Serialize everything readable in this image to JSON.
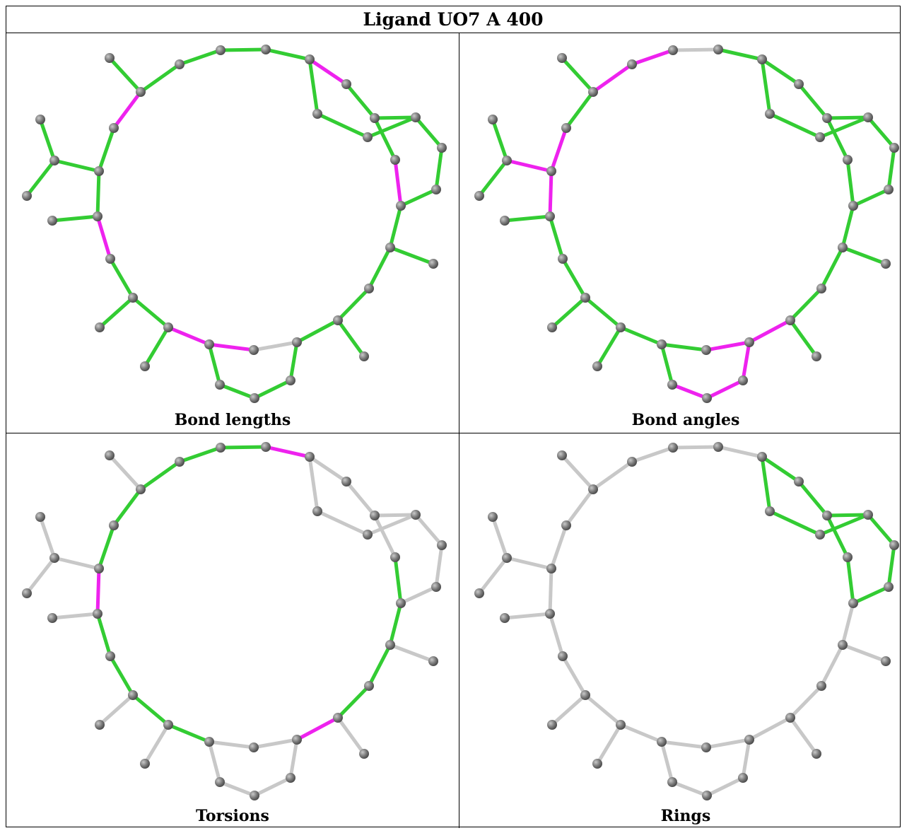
{
  "title": "Ligand UO7 A 400",
  "panels": [
    {
      "caption": "Bond lengths"
    },
    {
      "caption": "Bond angles"
    },
    {
      "caption": "Torsions"
    },
    {
      "caption": "Rings"
    }
  ],
  "colors": {
    "ok": "#33cc33",
    "outlier": "#ee22ee",
    "neutral": "#c8c8c8",
    "atom": "#7a7a7a"
  }
}
